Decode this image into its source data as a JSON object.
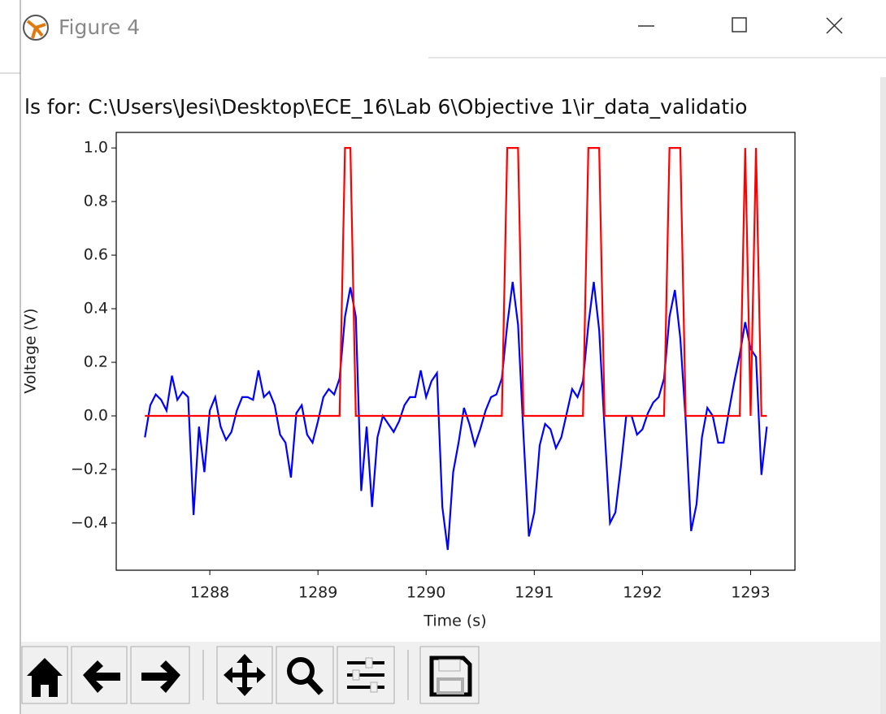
{
  "window": {
    "title": "Figure 4"
  },
  "chart_data": {
    "type": "line",
    "title": "ls for: C:\\Users\\Jesi\\Desktop\\ECE_16\\Lab 6\\Objective 1\\ir_data_validatio",
    "xlabel": "Time (s)",
    "ylabel": "Voltage (V)",
    "xlim": [
      1287.135,
      1293.41
    ],
    "ylim": [
      -0.576,
      1.058
    ],
    "xticks": [
      1288,
      1289,
      1290,
      1291,
      1292,
      1293
    ],
    "yticks": [
      {
        "value": -0.4,
        "label": "−0.4"
      },
      {
        "value": -0.2,
        "label": "−0.2"
      },
      {
        "value": 0,
        "label": "0.0"
      },
      0.2,
      0.4,
      0.6,
      0.8,
      {
        "value": 1,
        "label": "1.0"
      }
    ],
    "series": [
      {
        "color": "#0000ff",
        "x": [
          1287.4,
          1287.45,
          1287.5,
          1287.55,
          1287.6,
          1287.65,
          1287.7,
          1287.75,
          1287.8,
          1287.85,
          1287.9,
          1287.95,
          1288.0,
          1288.05,
          1288.1,
          1288.15,
          1288.2,
          1288.25,
          1288.3,
          1288.35,
          1288.4,
          1288.45,
          1288.5,
          1288.55,
          1288.6,
          1288.65,
          1288.7,
          1288.75,
          1288.8,
          1288.85,
          1288.9,
          1288.95,
          1289.0,
          1289.05,
          1289.1,
          1289.15,
          1289.2,
          1289.25,
          1289.3,
          1289.35,
          1289.4,
          1289.45,
          1289.5,
          1289.55,
          1289.6,
          1289.65,
          1289.7,
          1289.75,
          1289.8,
          1289.85,
          1289.9,
          1289.95,
          1290.0,
          1290.05,
          1290.1,
          1290.15,
          1290.2,
          1290.25,
          1290.3,
          1290.35,
          1290.4,
          1290.45,
          1290.5,
          1290.55,
          1290.6,
          1290.65,
          1290.7,
          1290.75,
          1290.8,
          1290.85,
          1290.9,
          1290.95,
          1291.0,
          1291.05,
          1291.1,
          1291.15,
          1291.2,
          1291.25,
          1291.3,
          1291.35,
          1291.4,
          1291.45,
          1291.5,
          1291.55,
          1291.6,
          1291.65,
          1291.7,
          1291.75,
          1291.8,
          1291.85,
          1291.9,
          1291.95,
          1292.0,
          1292.05,
          1292.1,
          1292.15,
          1292.2,
          1292.25,
          1292.3,
          1292.35,
          1292.4,
          1292.45,
          1292.5,
          1292.55,
          1292.6,
          1292.65,
          1292.7,
          1292.75,
          1292.8,
          1292.85,
          1292.9,
          1292.95,
          1293.0,
          1293.05,
          1293.1,
          1293.15
        ],
        "values": [
          -0.08,
          0.04,
          0.08,
          0.06,
          0.02,
          0.15,
          0.06,
          0.09,
          0.07,
          -0.37,
          -0.04,
          -0.21,
          0.02,
          0.07,
          -0.04,
          -0.09,
          -0.06,
          0.02,
          0.07,
          0.07,
          0.06,
          0.17,
          0.07,
          0.09,
          0.04,
          -0.07,
          -0.1,
          -0.23,
          0.01,
          0.04,
          -0.07,
          -0.1,
          -0.02,
          0.07,
          0.1,
          0.08,
          0.14,
          0.37,
          0.48,
          0.37,
          -0.28,
          -0.04,
          -0.34,
          -0.08,
          0.0,
          -0.03,
          -0.06,
          -0.02,
          0.04,
          0.07,
          0.07,
          0.17,
          0.07,
          0.13,
          0.16,
          -0.34,
          -0.5,
          -0.21,
          -0.1,
          0.03,
          -0.03,
          -0.11,
          -0.05,
          0.02,
          0.07,
          0.08,
          0.14,
          0.34,
          0.5,
          0.34,
          -0.07,
          -0.45,
          -0.36,
          -0.11,
          -0.03,
          -0.05,
          -0.12,
          -0.08,
          0.01,
          0.1,
          0.07,
          0.13,
          0.34,
          0.5,
          0.32,
          -0.05,
          -0.4,
          -0.36,
          -0.19,
          0.0,
          0.0,
          -0.07,
          -0.05,
          0.01,
          0.05,
          0.07,
          0.14,
          0.37,
          0.47,
          0.29,
          -0.02,
          -0.43,
          -0.33,
          -0.08,
          0.03,
          0.0,
          -0.1,
          -0.1,
          0.02,
          0.13,
          0.23,
          0.35,
          0.25,
          0.22,
          -0.22,
          -0.04
        ]
      },
      {
        "color": "#ff0000",
        "x": [
          1287.4,
          1289.2,
          1289.25,
          1289.3,
          1289.35,
          1290.7,
          1290.75,
          1290.85,
          1290.9,
          1291.45,
          1291.5,
          1291.6,
          1291.65,
          1292.2,
          1292.25,
          1292.35,
          1292.4,
          1292.9,
          1292.95,
          1293.0,
          1293.05,
          1293.1,
          1293.15
        ],
        "values": [
          0,
          0,
          1,
          1,
          0,
          0,
          1,
          1,
          0,
          0,
          1,
          1,
          0,
          0,
          1,
          1,
          0,
          0,
          1,
          0,
          1,
          0,
          0
        ]
      }
    ]
  }
}
